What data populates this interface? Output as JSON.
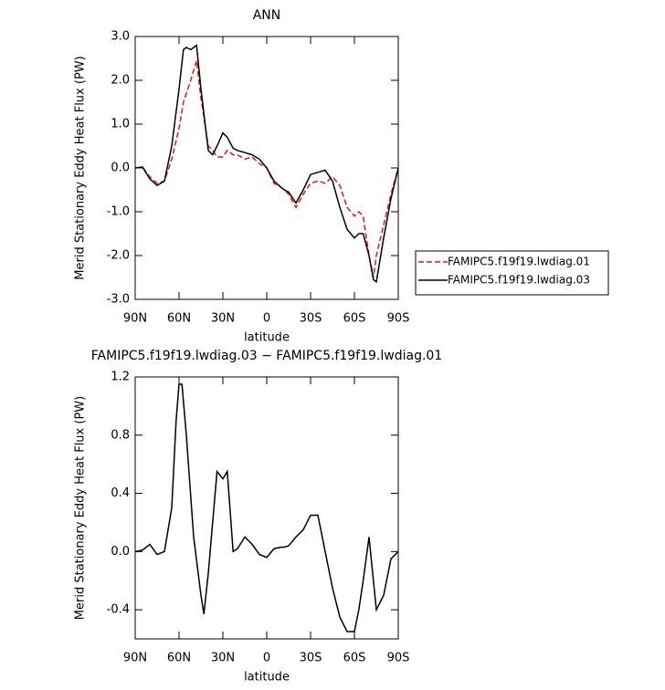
{
  "chart_data": [
    {
      "type": "line",
      "title": "ANN",
      "ylabel": "Merid Stationary Eddy Heat Flux (PW)",
      "xlabel": "latitude",
      "x": [
        90,
        85,
        80,
        75,
        70,
        65,
        60,
        57,
        55,
        52,
        48,
        45,
        40,
        37,
        34,
        30,
        27,
        23,
        20,
        15,
        10,
        5,
        0,
        -5,
        -10,
        -12,
        -15,
        -20,
        -25,
        -30,
        -35,
        -40,
        -45,
        -50,
        -55,
        -60,
        -63,
        -66,
        -70,
        -73,
        -75,
        -80,
        -85,
        -90
      ],
      "xlim": [
        90,
        -90
      ],
      "xticks": [
        {
          "value": 90,
          "label": "90N"
        },
        {
          "value": 60,
          "label": "60N"
        },
        {
          "value": 30,
          "label": "30N"
        },
        0,
        {
          "value": -30,
          "label": "30S"
        },
        {
          "value": -60,
          "label": "60S"
        },
        {
          "value": -90,
          "label": "90S"
        }
      ],
      "ylim": [
        -3,
        3
      ],
      "yticks": [
        {
          "value": -3,
          "label": "-3.0"
        },
        {
          "value": -2,
          "label": "-2.0"
        },
        {
          "value": -1,
          "label": "-1.0"
        },
        {
          "value": 0,
          "label": "0.0"
        },
        {
          "value": 1,
          "label": "1.0"
        },
        {
          "value": 2,
          "label": "2.0"
        },
        {
          "value": 3,
          "label": "3.0"
        }
      ],
      "legend": "outside-right",
      "series": [
        {
          "name": "FAMIPC5.f19f19.lwdiag.01",
          "color": "#e8141c",
          "style": "dashed",
          "values": [
            0,
            0.02,
            -0.2,
            -0.35,
            -0.3,
            0.2,
            0.9,
            1.5,
            1.7,
            2.0,
            2.45,
            1.6,
            0.5,
            0.4,
            0.25,
            0.25,
            0.4,
            0.3,
            0.3,
            0.2,
            0.25,
            0.1,
            0,
            -0.35,
            -0.45,
            -0.5,
            -0.6,
            -0.9,
            -0.6,
            -0.35,
            -0.3,
            -0.35,
            -0.2,
            -0.4,
            -0.9,
            -1.1,
            -1.0,
            -1.1,
            -2.0,
            -2.5,
            -2.0,
            -1.3,
            -0.6,
            0
          ]
        },
        {
          "name": "FAMIPC5.f19f19.lwdiag.03",
          "color": "#000000",
          "style": "solid",
          "values": [
            0,
            0.02,
            -0.25,
            -0.4,
            -0.3,
            0.5,
            1.8,
            2.7,
            2.75,
            2.7,
            2.8,
            1.8,
            0.4,
            0.3,
            0.5,
            0.8,
            0.7,
            0.45,
            0.4,
            0.35,
            0.3,
            0.2,
            0,
            -0.3,
            -0.45,
            -0.5,
            -0.55,
            -0.8,
            -0.5,
            -0.15,
            -0.1,
            -0.05,
            -0.3,
            -0.9,
            -1.4,
            -1.6,
            -1.5,
            -1.5,
            -2.0,
            -2.55,
            -2.6,
            -1.6,
            -0.7,
            0
          ]
        }
      ]
    },
    {
      "type": "line",
      "title": "FAMIPC5.f19f19.lwdiag.03 − FAMIPC5.f19f19.lwdiag.01",
      "ylabel": "Merid Stationary Eddy Heat Flux (PW)",
      "xlabel": "latitude",
      "x": [
        90,
        85,
        80,
        75,
        70,
        65,
        62,
        60,
        58,
        55,
        50,
        45,
        43,
        40,
        37,
        34,
        30,
        27,
        23,
        20,
        15,
        10,
        5,
        0,
        -5,
        -10,
        -12,
        -15,
        -20,
        -25,
        -30,
        -35,
        -40,
        -45,
        -50,
        -55,
        -60,
        -63,
        -66,
        -70,
        -73,
        -75,
        -80,
        -85,
        -90
      ],
      "xlim": [
        90,
        -90
      ],
      "xticks": [
        {
          "value": 90,
          "label": "90N"
        },
        {
          "value": 60,
          "label": "60N"
        },
        {
          "value": 30,
          "label": "30N"
        },
        0,
        {
          "value": -30,
          "label": "30S"
        },
        {
          "value": -60,
          "label": "60S"
        },
        {
          "value": -90,
          "label": "90S"
        }
      ],
      "ylim": [
        -0.6,
        1.2
      ],
      "yticks": [
        -0.4,
        {
          "value": 0,
          "label": "0.0"
        },
        0.4,
        0.8,
        1.2
      ],
      "series": [
        {
          "color": "#000000",
          "style": "solid",
          "values": [
            0,
            0.01,
            0.05,
            -0.02,
            0.0,
            0.3,
            0.9,
            1.15,
            1.15,
            0.8,
            0.1,
            -0.3,
            -0.43,
            -0.15,
            0.2,
            0.55,
            0.5,
            0.55,
            0.0,
            0.02,
            0.1,
            0.05,
            -0.02,
            -0.04,
            0.02,
            0.03,
            0.03,
            0.04,
            0.1,
            0.15,
            0.25,
            0.25,
            0.0,
            -0.25,
            -0.45,
            -0.55,
            -0.55,
            -0.4,
            -0.2,
            0.1,
            -0.2,
            -0.4,
            -0.3,
            -0.05,
            0
          ]
        }
      ]
    }
  ]
}
